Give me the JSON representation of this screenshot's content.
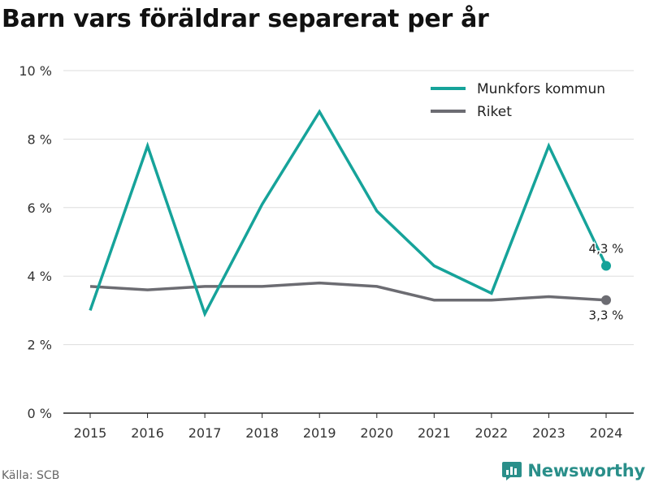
{
  "title": "Barn vars föräldrar separerat per år",
  "source": "Källa: SCB",
  "brand": "Newsworthy",
  "colors": {
    "munkfors": "#16a39a",
    "riket": "#6c6c72",
    "grid": "#dddddd",
    "brand": "#2a8f8a"
  },
  "chart_data": {
    "type": "line",
    "x": [
      2015,
      2016,
      2017,
      2018,
      2019,
      2020,
      2021,
      2022,
      2023,
      2024
    ],
    "ylim": [
      0,
      10
    ],
    "yticks": [
      0,
      2,
      4,
      6,
      8,
      10
    ],
    "ytick_labels": [
      "0 %",
      "2 %",
      "4 %",
      "6 %",
      "8 %",
      "10 %"
    ],
    "grid": "horizontal",
    "legend": "top-right",
    "series": [
      {
        "name": "Munkfors kommun",
        "values": [
          3.0,
          7.8,
          2.9,
          6.1,
          8.8,
          5.9,
          4.3,
          3.5,
          7.8,
          4.3
        ],
        "end_label": "4,3 %"
      },
      {
        "name": "Riket",
        "values": [
          3.7,
          3.6,
          3.7,
          3.7,
          3.8,
          3.7,
          3.3,
          3.3,
          3.4,
          3.3
        ],
        "end_label": "3,3 %"
      }
    ]
  }
}
